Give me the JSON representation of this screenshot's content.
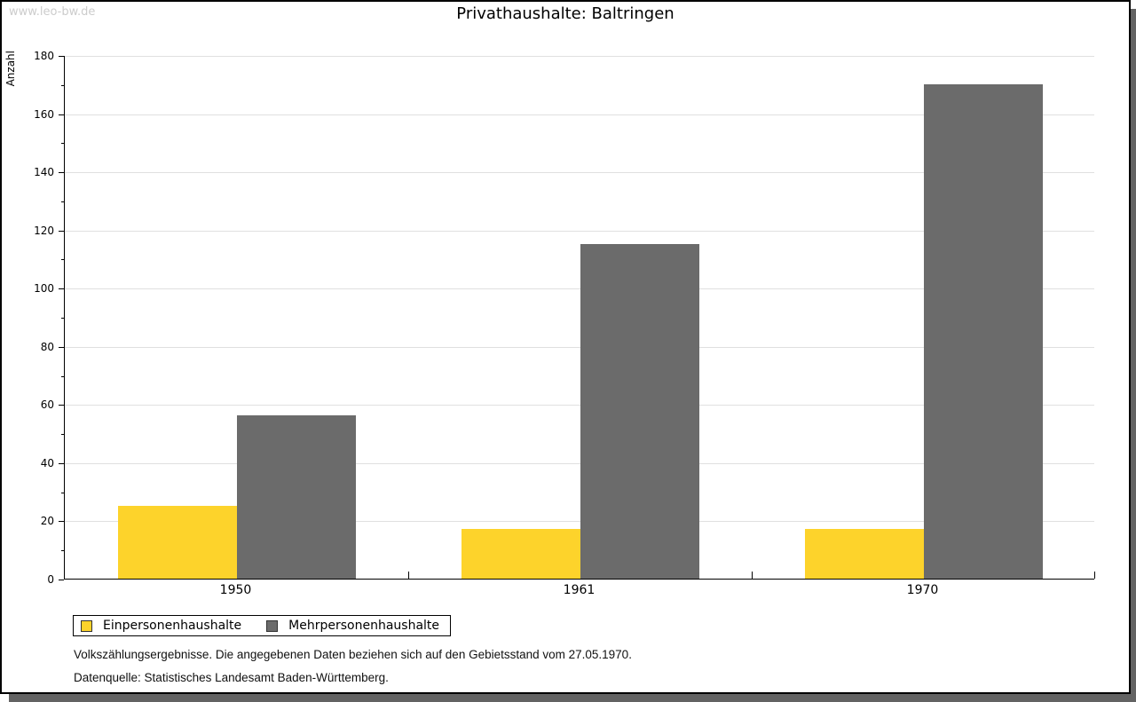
{
  "watermark": "www.leo-bw.de",
  "title": "Privathaushalte: Baltringen",
  "chart_data": {
    "type": "bar",
    "title": "Privathaushalte: Baltringen",
    "categories": [
      "1950",
      "1961",
      "1970"
    ],
    "series": [
      {
        "name": "Einpersonenhaushalte",
        "color": "#fdd32b",
        "values": [
          25,
          17,
          17
        ]
      },
      {
        "name": "Mehrpersonenhaushalte",
        "color": "#6b6b6b",
        "values": [
          56,
          115,
          170
        ]
      }
    ],
    "xlabel": "",
    "ylabel": "Anzahl",
    "ylim": [
      0,
      180
    ],
    "ytick_step": 20,
    "yminor_step": 10,
    "grid": true,
    "gridline_color": "#e0e0e0",
    "legend_position": "bottom-left"
  },
  "footer": {
    "line1": "Volkszählungsergebnisse. Die angegebenen Daten beziehen sich auf den Gebietsstand vom 27.05.1970.",
    "line2": "Datenquelle: Statistisches Landesamt Baden-Württemberg."
  }
}
